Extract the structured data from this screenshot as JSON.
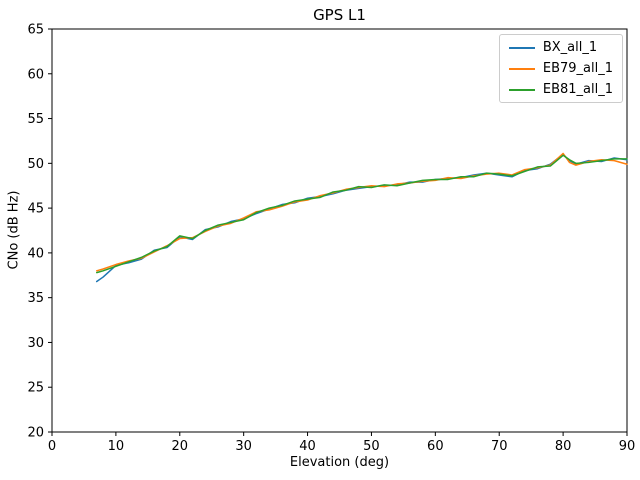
{
  "chart_data": {
    "type": "line",
    "title": "GPS L1",
    "xlabel": "Elevation (deg)",
    "ylabel": "CNo (dB Hz)",
    "xlim": [
      0,
      90
    ],
    "ylim": [
      20,
      65
    ],
    "xticks": [
      0,
      10,
      20,
      30,
      40,
      50,
      60,
      70,
      80,
      90
    ],
    "yticks": [
      20,
      25,
      30,
      35,
      40,
      45,
      50,
      55,
      60,
      65
    ],
    "grid": false,
    "legend_position": "upper right",
    "x": [
      7,
      8,
      10,
      12,
      14,
      16,
      18,
      20,
      22,
      24,
      26,
      28,
      30,
      32,
      34,
      36,
      38,
      40,
      42,
      44,
      46,
      48,
      50,
      52,
      54,
      56,
      58,
      60,
      62,
      64,
      66,
      68,
      70,
      72,
      74,
      76,
      78,
      80,
      81,
      82,
      84,
      86,
      88,
      90
    ],
    "series": [
      {
        "name": "BX_all_1",
        "color": "#1f77b4",
        "values": [
          36.8,
          37.3,
          38.6,
          38.9,
          39.3,
          40.3,
          40.6,
          41.8,
          41.5,
          42.6,
          42.9,
          43.5,
          43.8,
          44.4,
          44.9,
          45.4,
          45.6,
          46.1,
          46.3,
          46.6,
          47.0,
          47.2,
          47.4,
          47.5,
          47.6,
          47.9,
          47.9,
          48.2,
          48.3,
          48.4,
          48.7,
          48.9,
          48.7,
          48.5,
          49.2,
          49.4,
          49.9,
          51.0,
          50.3,
          49.9,
          50.3,
          50.2,
          50.6,
          50.4
        ]
      },
      {
        "name": "EB79_all_1",
        "color": "#ff7f0e",
        "values": [
          38.0,
          38.2,
          38.7,
          39.1,
          39.4,
          40.1,
          40.8,
          41.6,
          41.7,
          42.4,
          43.0,
          43.3,
          43.9,
          44.6,
          44.8,
          45.2,
          45.7,
          45.9,
          46.4,
          46.7,
          47.1,
          47.3,
          47.5,
          47.4,
          47.7,
          47.8,
          48.0,
          48.1,
          48.4,
          48.3,
          48.6,
          48.8,
          48.9,
          48.7,
          49.3,
          49.5,
          49.8,
          51.1,
          50.1,
          49.8,
          50.2,
          50.4,
          50.3,
          49.9
        ]
      },
      {
        "name": "EB81_all_1",
        "color": "#2ca02c",
        "values": [
          37.8,
          38.0,
          38.5,
          39.0,
          39.5,
          40.2,
          40.7,
          41.9,
          41.6,
          42.5,
          43.1,
          43.4,
          43.7,
          44.5,
          45.0,
          45.3,
          45.8,
          46.0,
          46.2,
          46.8,
          47.0,
          47.4,
          47.3,
          47.6,
          47.5,
          47.8,
          48.1,
          48.2,
          48.2,
          48.5,
          48.5,
          48.9,
          48.8,
          48.6,
          49.1,
          49.6,
          49.7,
          50.9,
          50.4,
          50.0,
          50.1,
          50.3,
          50.5,
          50.5
        ]
      }
    ]
  }
}
